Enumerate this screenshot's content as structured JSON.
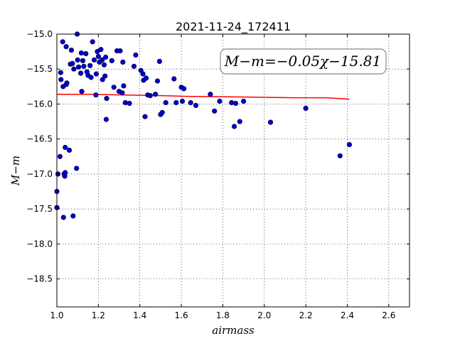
{
  "chart_data": {
    "type": "scatter",
    "title": "2021-11-24_172411",
    "xlabel": "airmass",
    "ylabel": "M−m",
    "xlim": [
      1.0,
      2.7
    ],
    "ylim": [
      -15.0,
      -18.9
    ],
    "y_inverted": true,
    "grid": true,
    "x_ticks": [
      1.0,
      1.2,
      1.4,
      1.6,
      1.8,
      2.0,
      2.2,
      2.4,
      2.6
    ],
    "x_tick_labels": [
      "1.0",
      "1.2",
      "1.4",
      "1.6",
      "1.8",
      "2.0",
      "2.2",
      "2.4",
      "2.6"
    ],
    "y_ticks": [
      -15.0,
      -15.5,
      -16.0,
      -16.5,
      -17.0,
      -17.5,
      -18.0,
      -18.5
    ],
    "y_tick_labels": [
      "−15.0",
      "−15.5",
      "−16.0",
      "−16.5",
      "−17.0",
      "−17.5",
      "−18.0",
      "−18.5"
    ],
    "annotation": "M−m=−0.05χ−15.81",
    "fit": {
      "color": "#ff0000",
      "x": [
        1.0,
        1.16,
        1.33,
        1.5,
        1.62,
        1.92,
        2.15,
        2.3,
        2.41
      ],
      "y": [
        -15.86,
        -15.86,
        -15.87,
        -15.88,
        -15.89,
        -15.9,
        -15.91,
        -15.91,
        -15.93
      ]
    },
    "points_color": "#0000cc",
    "points": [
      [
        1.0,
        -17.25
      ],
      [
        1.0,
        -17.48
      ],
      [
        1.005,
        -17.0
      ],
      [
        1.015,
        -16.75
      ],
      [
        1.018,
        -15.55
      ],
      [
        1.02,
        -15.65
      ],
      [
        1.028,
        -15.11
      ],
      [
        1.03,
        -15.75
      ],
      [
        1.032,
        -17.62
      ],
      [
        1.035,
        -17.0
      ],
      [
        1.038,
        -17.03
      ],
      [
        1.04,
        -16.62
      ],
      [
        1.04,
        -16.98
      ],
      [
        1.045,
        -15.72
      ],
      [
        1.045,
        -15.18
      ],
      [
        1.048,
        -15.7
      ],
      [
        1.06,
        -16.66
      ],
      [
        1.065,
        -15.43
      ],
      [
        1.07,
        -15.23
      ],
      [
        1.075,
        -15.42
      ],
      [
        1.078,
        -17.6
      ],
      [
        1.082,
        -15.5
      ],
      [
        1.095,
        -16.92
      ],
      [
        1.1,
        -15.37
      ],
      [
        1.098,
        -14.85
      ],
      [
        1.105,
        -15.47
      ],
      [
        1.115,
        -15.56
      ],
      [
        1.118,
        -15.27
      ],
      [
        1.12,
        -15.82
      ],
      [
        1.125,
        -15.38
      ],
      [
        1.13,
        -15.46
      ],
      [
        1.14,
        -15.28
      ],
      [
        1.145,
        -15.54
      ],
      [
        1.15,
        -15.59
      ],
      [
        1.16,
        -15.45
      ],
      [
        1.165,
        -15.62
      ],
      [
        1.172,
        -15.11
      ],
      [
        1.18,
        -15.37
      ],
      [
        1.188,
        -15.87
      ],
      [
        1.19,
        -15.57
      ],
      [
        1.195,
        -15.25
      ],
      [
        1.2,
        -15.32
      ],
      [
        1.205,
        -15.4
      ],
      [
        1.212,
        -15.22
      ],
      [
        1.218,
        -15.37
      ],
      [
        1.22,
        -15.65
      ],
      [
        1.228,
        -15.44
      ],
      [
        1.232,
        -15.6
      ],
      [
        1.235,
        -15.33
      ],
      [
        1.238,
        -16.22
      ],
      [
        1.24,
        -15.92
      ],
      [
        1.265,
        -15.38
      ],
      [
        1.275,
        -15.76
      ],
      [
        1.29,
        -15.24
      ],
      [
        1.3,
        -15.82
      ],
      [
        1.305,
        -15.24
      ],
      [
        1.315,
        -15.84
      ],
      [
        1.318,
        -15.4
      ],
      [
        1.322,
        -15.74
      ],
      [
        1.33,
        -15.98
      ],
      [
        1.35,
        -15.99
      ],
      [
        1.372,
        -15.46
      ],
      [
        1.38,
        -15.3
      ],
      [
        1.405,
        -15.52
      ],
      [
        1.415,
        -15.57
      ],
      [
        1.418,
        -15.66
      ],
      [
        1.425,
        -16.18
      ],
      [
        1.43,
        -15.63
      ],
      [
        1.438,
        -15.87
      ],
      [
        1.45,
        -15.88
      ],
      [
        1.475,
        -15.86
      ],
      [
        1.485,
        -15.67
      ],
      [
        1.495,
        -15.39
      ],
      [
        1.5,
        -16.15
      ],
      [
        1.508,
        -16.12
      ],
      [
        1.525,
        -15.98
      ],
      [
        1.565,
        -15.64
      ],
      [
        1.575,
        -15.98
      ],
      [
        1.6,
        -15.76
      ],
      [
        1.605,
        -15.96
      ],
      [
        1.612,
        -15.78
      ],
      [
        1.645,
        -15.98
      ],
      [
        1.67,
        -16.02
      ],
      [
        1.74,
        -15.86
      ],
      [
        1.76,
        -16.1
      ],
      [
        1.785,
        -15.96
      ],
      [
        1.842,
        -15.98
      ],
      [
        1.855,
        -16.32
      ],
      [
        1.862,
        -15.99
      ],
      [
        1.882,
        -16.25
      ],
      [
        1.9,
        -15.96
      ],
      [
        2.03,
        -16.26
      ],
      [
        2.2,
        -16.06
      ],
      [
        2.365,
        -16.74
      ],
      [
        2.41,
        -16.58
      ]
    ]
  }
}
